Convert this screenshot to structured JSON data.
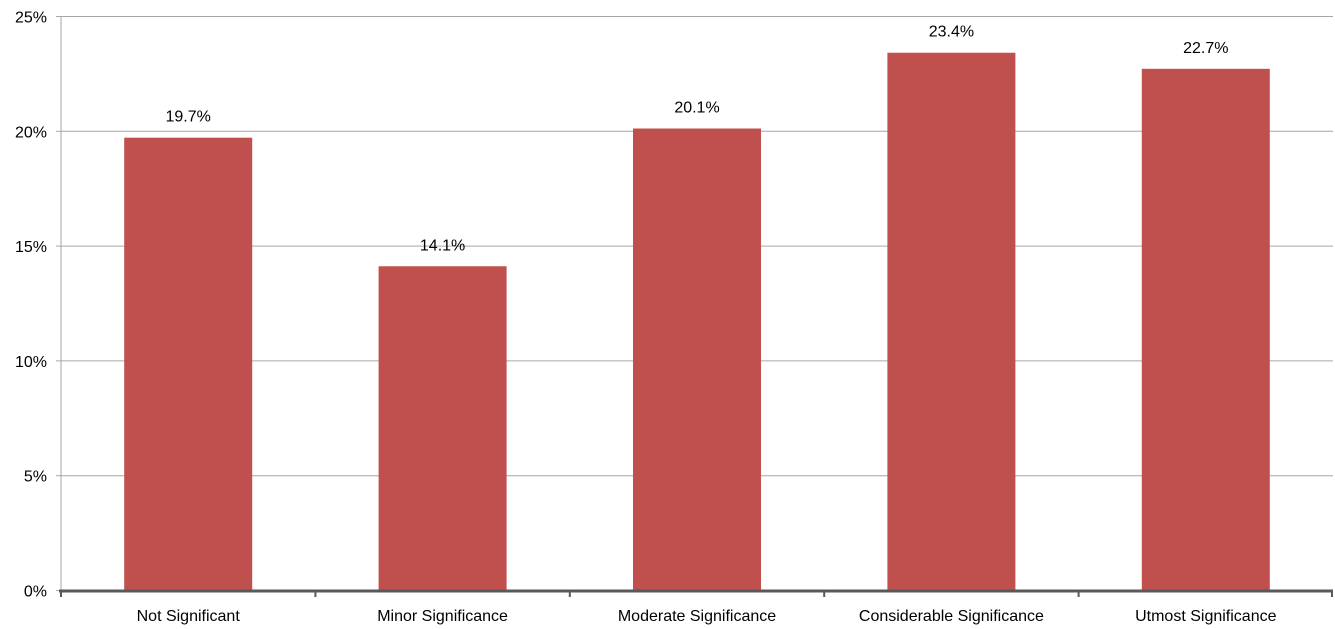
{
  "chart_data": {
    "type": "bar",
    "categories": [
      "Not Significant",
      "Minor Significance",
      "Moderate Significance",
      "Considerable Significance",
      "Utmost Significance"
    ],
    "values": [
      19.7,
      14.1,
      20.1,
      23.4,
      22.7
    ],
    "data_labels": [
      "19.7%",
      "14.1%",
      "20.1%",
      "23.4%",
      "22.7%"
    ],
    "yticks": [
      0,
      5,
      10,
      15,
      20,
      25
    ],
    "ytick_labels": [
      "0%",
      "5%",
      "10%",
      "15%",
      "20%",
      "25%"
    ],
    "ylim": [
      0,
      25
    ],
    "title": "",
    "xlabel": "",
    "ylabel": "",
    "grid": true,
    "legend": "none",
    "colors": {
      "bar": "#C0504D",
      "grid": "#A6A6A6",
      "axis": "#595959"
    }
  }
}
